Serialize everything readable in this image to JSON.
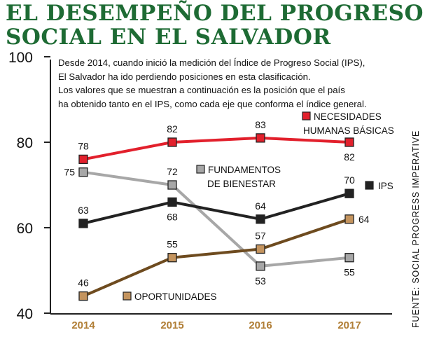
{
  "header": {
    "title_line1": "EL DESEMPEÑO DEL PROGRESO",
    "title_line2": "SOCIAL EN EL SALVADOR"
  },
  "description": {
    "line1": "Desde 2014, cuando inició la medición del Índice de Progreso Social (IPS),",
    "line2": "El Salvador ha ido perdiendo posiciones en esta clasificación.",
    "line3": "Los valores que se muestran a continuación es la posición que el país",
    "line4": "ha obtenido tanto en el IPS, como cada eje que conforma el índice general."
  },
  "source": "FUENTE: SOCIAL PROGRESS IMPERATIVE",
  "colors": {
    "title": "#1e6b34",
    "year_labels": "#b07d34",
    "axis": "#222222",
    "data_labels": "#111111"
  },
  "chart_data": {
    "type": "line",
    "x": [
      "2014",
      "2015",
      "2016",
      "2017"
    ],
    "ylim": [
      40,
      100
    ],
    "yticks": [
      "40",
      "60",
      "80",
      "100"
    ],
    "grid": false,
    "series": [
      {
        "name_line1": "NECESIDADES",
        "name_line2": "HUMANAS BÁSICAS",
        "positions": [
          78,
          82,
          83,
          82
        ],
        "plot_values": [
          76,
          80,
          81,
          80
        ],
        "labels": [
          "78",
          "82",
          "83",
          "82"
        ],
        "label_side": [
          "above",
          "above",
          "above",
          "below"
        ],
        "color": "#e2202c",
        "marker_color": "#e2202c"
      },
      {
        "name_line1": "FUNDAMENTOS",
        "name_line2": "DE BIENESTAR",
        "positions": [
          75,
          72,
          53,
          55
        ],
        "plot_values": [
          73,
          70,
          51,
          53
        ],
        "labels": [
          "75",
          "72",
          "53",
          "55"
        ],
        "label_side": [
          "left",
          "above",
          "below",
          "below"
        ],
        "color": "#a7a7a7",
        "marker_color": "#a7a7a7"
      },
      {
        "name_line1": "IPS",
        "name_line2": "",
        "positions": [
          63,
          68,
          64,
          70
        ],
        "plot_values": [
          61,
          66,
          62,
          68
        ],
        "labels": [
          "63",
          "68",
          "64",
          "70"
        ],
        "label_side": [
          "above",
          "below",
          "above",
          "above"
        ],
        "color": "#222222",
        "marker_color": "#222222"
      },
      {
        "name_line1": "OPORTUNIDADES",
        "name_line2": "",
        "positions": [
          46,
          55,
          57,
          64
        ],
        "plot_values": [
          44,
          53,
          55,
          62
        ],
        "labels": [
          "46",
          "55",
          "57",
          "64"
        ],
        "label_side": [
          "above",
          "above",
          "above",
          "right"
        ],
        "color": "#6e4b1f",
        "marker_color": "#c4945e"
      }
    ]
  }
}
